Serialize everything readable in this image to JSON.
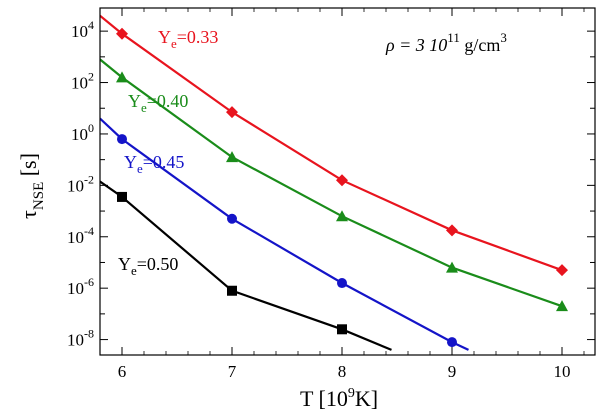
{
  "chart_data": {
    "type": "line",
    "xlabel": {
      "base": "T [10",
      "sup": "9",
      "tail": "K]"
    },
    "ylabel": {
      "main": "τ",
      "sub": "NSE",
      "tail": " [s]"
    },
    "xlim": [
      5.8,
      10.3
    ],
    "ylim_log10": [
      -8.6,
      4.9
    ],
    "yscale": "log",
    "x_ticks": [
      6,
      7,
      8,
      9,
      10
    ],
    "y_tick_exponents": [
      -8,
      -6,
      -4,
      -2,
      0,
      2,
      4
    ],
    "annotation": {
      "rho": "ρ = 3 10",
      "exp": "11",
      "unit": " g/cm",
      "unit_exp": "3"
    },
    "series": [
      {
        "label": "Ye=0.33",
        "label_base": "Y",
        "label_sub": "e",
        "label_tail": "=0.33",
        "color": "#e8141e",
        "marker": "diamond",
        "x": [
          5.8,
          6,
          7,
          8,
          9,
          10
        ],
        "y_log10": [
          4.6,
          3.9,
          0.85,
          -1.8,
          -3.75,
          -5.3
        ],
        "marker_x": [
          6,
          7,
          8,
          9,
          10
        ]
      },
      {
        "label": "Ye=0.40",
        "label_base": "Y",
        "label_sub": "e",
        "label_tail": "=0.40",
        "color": "#1a8c1a",
        "marker": "triangle",
        "x": [
          5.8,
          6,
          7,
          8,
          9,
          10
        ],
        "y_log10": [
          2.9,
          2.2,
          -0.9,
          -3.2,
          -5.2,
          -6.7
        ],
        "marker_x": [
          6,
          7,
          8,
          9,
          10
        ]
      },
      {
        "label": "Ye=0.45",
        "label_base": "Y",
        "label_sub": "e",
        "label_tail": "=0.45",
        "color": "#1414c8",
        "marker": "circle",
        "x": [
          5.8,
          6,
          7,
          8,
          9,
          9.15
        ],
        "y_log10": [
          0.6,
          -0.2,
          -3.3,
          -5.8,
          -8.1,
          -8.4
        ],
        "marker_x": [
          6,
          7,
          8,
          9
        ]
      },
      {
        "label": "Ye=0.50",
        "label_base": "Y",
        "label_sub": "e",
        "label_tail": "=0.50",
        "color": "#000000",
        "marker": "square",
        "x": [
          5.8,
          6,
          7,
          8,
          8.45
        ],
        "y_log10": [
          -1.85,
          -2.45,
          -6.1,
          -7.6,
          -8.4
        ],
        "marker_x": [
          6,
          7,
          8
        ]
      }
    ]
  }
}
